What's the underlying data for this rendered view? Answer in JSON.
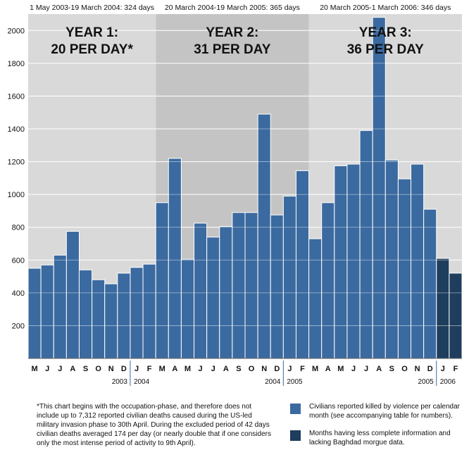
{
  "periods": [
    {
      "range": "1 May 2003-19 March 2004: 324 days",
      "year": "YEAR 1:",
      "rate": "20 PER DAY*",
      "bg": "#d9d9d9"
    },
    {
      "range": "20 March 2004-19 March 2005: 365 days",
      "year": "YEAR 2:",
      "rate": "31 PER DAY",
      "bg": "#c4c4c4"
    },
    {
      "range": "20 March 2005-1 March 2006: 346 days",
      "year": "YEAR 3:",
      "rate": "36 PER DAY",
      "bg": "#d9d9d9"
    }
  ],
  "colors": {
    "complete": "#3b6aa0",
    "incomplete": "#1f3d5c"
  },
  "chart_data": {
    "type": "bar",
    "categories": [
      "M",
      "J",
      "J",
      "A",
      "S",
      "O",
      "N",
      "D",
      "J",
      "F",
      "M",
      "A",
      "M",
      "J",
      "J",
      "A",
      "S",
      "O",
      "N",
      "D",
      "J",
      "F",
      "M",
      "A",
      "M",
      "J",
      "J",
      "A",
      "S",
      "O",
      "N",
      "D",
      "J",
      "F"
    ],
    "values": [
      550,
      570,
      630,
      775,
      540,
      480,
      455,
      520,
      555,
      575,
      950,
      1220,
      605,
      825,
      740,
      805,
      890,
      890,
      1490,
      875,
      990,
      1145,
      730,
      950,
      1175,
      1185,
      1390,
      2080,
      1210,
      1095,
      1185,
      910,
      610,
      520
    ],
    "incomplete_indices": [
      32,
      33
    ],
    "ylim": [
      0,
      2100
    ],
    "yticks": [
      200,
      400,
      600,
      800,
      1000,
      1200,
      1400,
      1600,
      1800,
      2000
    ],
    "year_labels": [
      {
        "label": "2003",
        "after_index": 7,
        "side": "left"
      },
      {
        "label": "2004",
        "after_index": 7,
        "side": "right"
      },
      {
        "label": "2004",
        "after_index": 19,
        "side": "left"
      },
      {
        "label": "2005",
        "after_index": 19,
        "side": "right"
      },
      {
        "label": "2005",
        "after_index": 31,
        "side": "left"
      },
      {
        "label": "2006",
        "after_index": 31,
        "side": "right"
      }
    ],
    "period_bounds": [
      [
        0,
        10
      ],
      [
        10,
        22
      ],
      [
        22,
        34
      ]
    ],
    "grid": true
  },
  "footnote": "*This chart begins with the occupation-phase, and therefore does not include up to 7,312 reported civilian deaths caused during the US-led military invasion phase to 30th April. During the excluded period of 42 days civilian deaths averaged 174 per day (or nearly double that if one considers only the most intense period of activity to 9th April).",
  "legend": [
    {
      "text": "Civilians reported killed by violence per calendar month (see accompanying table for numbers).",
      "color": "#3b6aa0"
    },
    {
      "text": "Months having less complete information and lacking Baghdad morgue data.",
      "color": "#1f3d5c"
    }
  ]
}
